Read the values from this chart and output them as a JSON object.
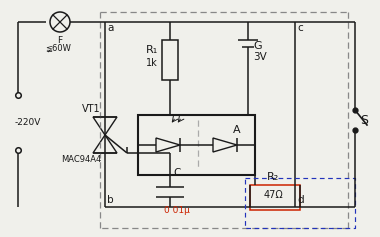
{
  "bg_color": "#f0f0eb",
  "wire_color": "#1a1a1a",
  "dash_color": "#888888",
  "red_color": "#cc2200",
  "blue_color": "#2233bb",
  "label_220V": "-220V",
  "label_F": "F",
  "label_60W": "≨60W",
  "label_VT1": "VT1",
  "label_mac": "MAC94A4",
  "label_R1": "R₁",
  "label_R1v": "1k",
  "label_A": "A",
  "label_G": "G",
  "label_Gv": "3V",
  "label_C": "C",
  "label_Cv": "0 01μ",
  "label_R2": "R₂",
  "label_R2v": "47Ω",
  "label_S": "S",
  "label_a": "a",
  "label_b": "b",
  "label_c": "c",
  "label_d": "d",
  "figsize": [
    3.8,
    2.37
  ],
  "dpi": 100
}
